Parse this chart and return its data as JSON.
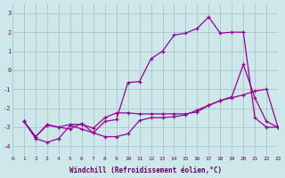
{
  "xlabel": "Windchill (Refroidissement éolien,°C)",
  "bg_color": "#cce8e8",
  "grid_color": "#aaccaa",
  "line_color": "#990099",
  "xlim": [
    0,
    23
  ],
  "ylim": [
    -4.5,
    3.5
  ],
  "yticks": [
    -4,
    -3,
    -2,
    -1,
    0,
    1,
    2,
    3
  ],
  "xticks": [
    0,
    1,
    2,
    3,
    4,
    5,
    6,
    7,
    8,
    9,
    10,
    11,
    12,
    13,
    14,
    15,
    16,
    17,
    18,
    19,
    20,
    21,
    22,
    23
  ],
  "line1_x": [
    1,
    2,
    3,
    4,
    5,
    6,
    7,
    8,
    9,
    10,
    11,
    12,
    13,
    14,
    15,
    16,
    17,
    18,
    19,
    20,
    21,
    22,
    23
  ],
  "line1_y": [
    -2.7,
    -3.5,
    -2.9,
    -3.0,
    -3.1,
    -2.8,
    -3.3,
    -2.7,
    -2.6,
    -0.65,
    -0.6,
    0.6,
    1.0,
    1.85,
    1.95,
    2.2,
    2.8,
    1.95,
    2.0,
    2.0,
    -2.5,
    -3.0,
    -3.0
  ],
  "line2_x": [
    1,
    2,
    3,
    4,
    5,
    6,
    7,
    8,
    9,
    10,
    11,
    12,
    13,
    14,
    15,
    16,
    17,
    18,
    19,
    20,
    21,
    22,
    23
  ],
  "line2_y": [
    -2.7,
    -3.6,
    -3.8,
    -3.6,
    -2.9,
    -3.1,
    -3.3,
    -3.5,
    -3.5,
    -3.35,
    -2.65,
    -2.5,
    -2.5,
    -2.45,
    -2.35,
    -2.1,
    -1.85,
    -1.6,
    -1.45,
    -1.3,
    -1.1,
    -1.0,
    -3.0
  ],
  "line3_x": [
    1,
    2,
    3,
    4,
    5,
    6,
    7,
    8,
    9,
    10,
    11,
    12,
    13,
    14,
    15,
    16,
    17,
    18,
    19,
    20,
    21,
    22,
    23
  ],
  "line3_y": [
    -2.7,
    -3.5,
    -2.85,
    -3.0,
    -2.85,
    -2.85,
    -3.05,
    -2.5,
    -2.25,
    -2.25,
    -2.3,
    -2.3,
    -2.3,
    -2.3,
    -2.3,
    -2.2,
    -1.85,
    -1.6,
    -1.4,
    0.3,
    -1.45,
    -2.7,
    -3.0
  ]
}
